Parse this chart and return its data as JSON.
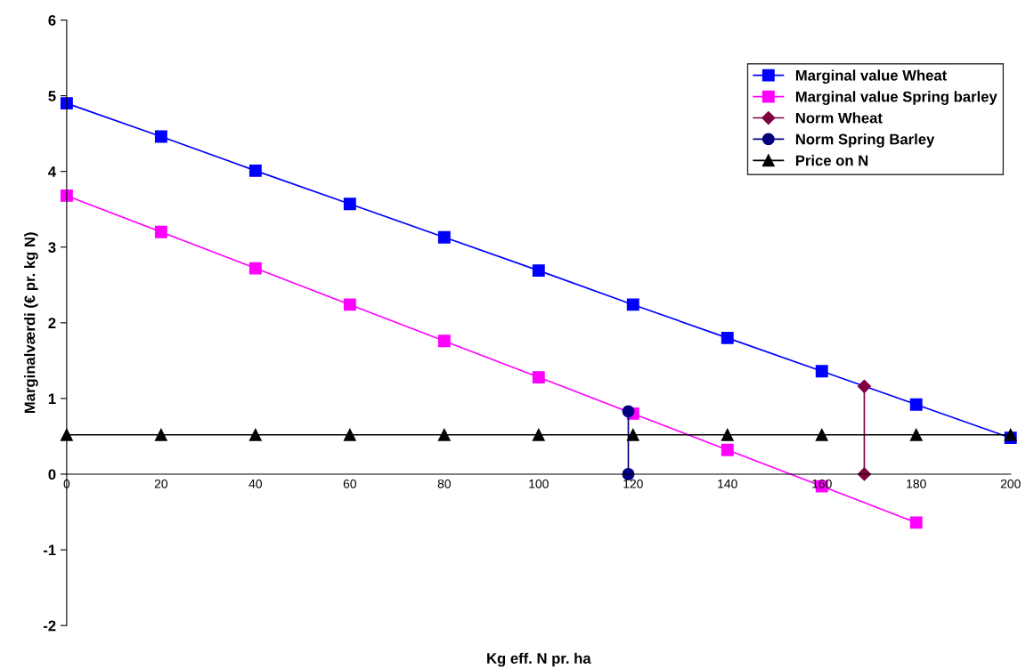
{
  "chart_data": {
    "type": "line",
    "xlabel": "Kg eff. N pr. ha",
    "ylabel": "Marginalværdi (€ pr. kg N)",
    "xlim": [
      0,
      200
    ],
    "xticks": [
      0,
      20,
      40,
      60,
      80,
      100,
      120,
      140,
      160,
      180,
      200
    ],
    "ylim": [
      -2,
      6
    ],
    "yticks": [
      -2,
      -1,
      0,
      1,
      2,
      3,
      4,
      5,
      6
    ],
    "grid": false,
    "legend": "top right",
    "series": [
      {
        "name": "Marginal value Wheat",
        "color": "#0000ff",
        "marker": "square",
        "x": [
          0,
          20,
          40,
          60,
          80,
          100,
          120,
          140,
          160,
          180,
          200
        ],
        "values": [
          4.9,
          4.46,
          4.01,
          3.57,
          3.13,
          2.69,
          2.24,
          1.8,
          1.36,
          0.92,
          0.48
        ]
      },
      {
        "name": "Marginal value Spring barley",
        "color": "#ff00ff",
        "marker": "square",
        "x": [
          0,
          20,
          40,
          60,
          80,
          100,
          120,
          140,
          160,
          180
        ],
        "values": [
          3.68,
          3.2,
          2.72,
          2.24,
          1.76,
          1.28,
          0.8,
          0.32,
          -0.16,
          -0.64
        ]
      },
      {
        "name": "Norm Wheat",
        "color": "#800040",
        "marker": "diamond",
        "x": [
          169,
          169
        ],
        "values": [
          1.16,
          0
        ]
      },
      {
        "name": "Norm Spring Barley",
        "color": "#000080",
        "marker": "circle",
        "x": [
          119,
          119
        ],
        "values": [
          0.83,
          0
        ]
      },
      {
        "name": "Price on N",
        "color": "#000000",
        "marker": "triangle",
        "x": [
          0,
          20,
          40,
          60,
          80,
          100,
          120,
          140,
          160,
          180,
          200
        ],
        "values": [
          0.52,
          0.52,
          0.52,
          0.52,
          0.52,
          0.52,
          0.52,
          0.52,
          0.52,
          0.52,
          0.52
        ]
      }
    ]
  }
}
